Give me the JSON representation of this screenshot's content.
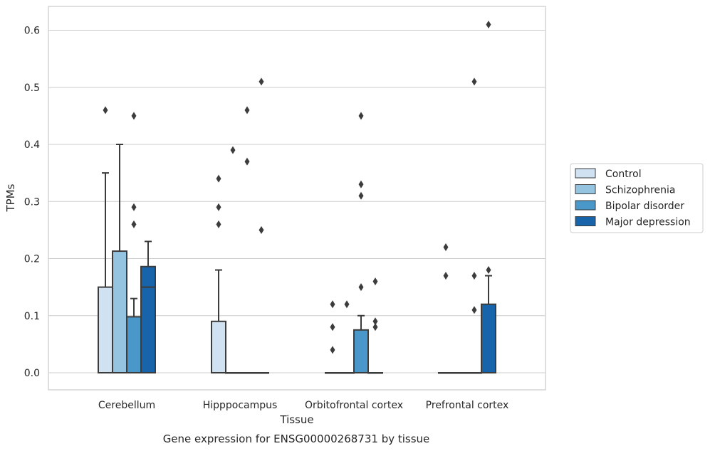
{
  "chart_data": {
    "type": "boxplot",
    "title": "",
    "caption": "Gene expression for ENSG00000268731 by tissue",
    "xlabel": "Tissue",
    "ylabel": "TPMs",
    "ylim": [
      -0.03,
      0.64
    ],
    "yticks": [
      0.0,
      0.1,
      0.2,
      0.3,
      0.4,
      0.5,
      0.6
    ],
    "ytick_labels": [
      "0.0",
      "0.1",
      "0.2",
      "0.3",
      "0.4",
      "0.5",
      "0.6"
    ],
    "grid": true,
    "legend_position": "right",
    "categories": [
      "Cerebellum",
      "Hipppocampus",
      "Orbitofrontal cortex",
      "Prefrontal cortex"
    ],
    "series": [
      {
        "name": "Control",
        "color": "#d0e1f2",
        "boxes": [
          {
            "q1": 0.0,
            "median": 0.0,
            "q3": 0.15,
            "whisker_low": 0.0,
            "whisker_high": 0.35,
            "outliers": [
              0.46
            ]
          },
          {
            "q1": 0.0,
            "median": 0.0,
            "q3": 0.09,
            "whisker_low": 0.0,
            "whisker_high": 0.18,
            "outliers": [
              0.26,
              0.29,
              0.34
            ]
          },
          {
            "q1": 0.0,
            "median": 0.0,
            "q3": 0.0,
            "whisker_low": 0.0,
            "whisker_high": 0.0,
            "outliers": [
              0.04,
              0.08,
              0.12
            ]
          },
          {
            "q1": 0.0,
            "median": 0.0,
            "q3": 0.0,
            "whisker_low": 0.0,
            "whisker_high": 0.0,
            "outliers": [
              0.17,
              0.22
            ]
          }
        ]
      },
      {
        "name": "Schizophrenia",
        "color": "#94c4df",
        "boxes": [
          {
            "q1": 0.0,
            "median": 0.0,
            "q3": 0.213,
            "whisker_low": 0.0,
            "whisker_high": 0.4,
            "outliers": []
          },
          {
            "q1": 0.0,
            "median": 0.0,
            "q3": 0.0,
            "whisker_low": 0.0,
            "whisker_high": 0.0,
            "outliers": [
              0.39
            ]
          },
          {
            "q1": 0.0,
            "median": 0.0,
            "q3": 0.0,
            "whisker_low": 0.0,
            "whisker_high": 0.0,
            "outliers": [
              0.12
            ]
          },
          {
            "q1": 0.0,
            "median": 0.0,
            "q3": 0.0,
            "whisker_low": 0.0,
            "whisker_high": 0.0,
            "outliers": []
          }
        ]
      },
      {
        "name": "Bipolar disorder",
        "color": "#4a98c9",
        "boxes": [
          {
            "q1": 0.0,
            "median": 0.0,
            "q3": 0.098,
            "whisker_low": 0.0,
            "whisker_high": 0.13,
            "outliers": [
              0.26,
              0.29,
              0.45
            ]
          },
          {
            "q1": 0.0,
            "median": 0.0,
            "q3": 0.0,
            "whisker_low": 0.0,
            "whisker_high": 0.0,
            "outliers": [
              0.37,
              0.46
            ]
          },
          {
            "q1": 0.0,
            "median": 0.0,
            "q3": 0.075,
            "whisker_low": 0.0,
            "whisker_high": 0.1,
            "outliers": [
              0.15,
              0.31,
              0.33,
              0.45
            ]
          },
          {
            "q1": 0.0,
            "median": 0.0,
            "q3": 0.0,
            "whisker_low": 0.0,
            "whisker_high": 0.0,
            "outliers": [
              0.11,
              0.17,
              0.51
            ]
          }
        ]
      },
      {
        "name": "Major depression",
        "color": "#1764ab",
        "boxes": [
          {
            "q1": 0.0,
            "median": 0.15,
            "q3": 0.186,
            "whisker_low": 0.0,
            "whisker_high": 0.23,
            "outliers": []
          },
          {
            "q1": 0.0,
            "median": 0.0,
            "q3": 0.0,
            "whisker_low": 0.0,
            "whisker_high": 0.0,
            "outliers": [
              0.25,
              0.51
            ]
          },
          {
            "q1": 0.0,
            "median": 0.0,
            "q3": 0.0,
            "whisker_low": 0.0,
            "whisker_high": 0.0,
            "outliers": [
              0.08,
              0.09,
              0.16
            ]
          },
          {
            "q1": 0.0,
            "median": 0.0,
            "q3": 0.12,
            "whisker_low": 0.0,
            "whisker_high": 0.17,
            "outliers": [
              0.18,
              0.61
            ]
          }
        ]
      }
    ]
  }
}
